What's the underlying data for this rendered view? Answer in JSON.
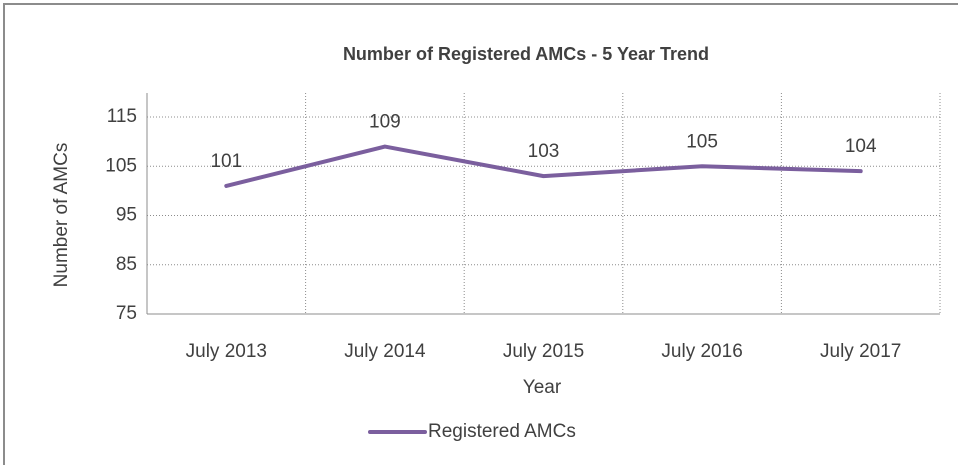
{
  "chart_data": {
    "type": "line",
    "title": "Number of Registered AMCs - 5 Year Trend",
    "x_label": "Year",
    "y_label": "Number of AMCs",
    "categories": [
      "July 2013",
      "July 2014",
      "July 2015",
      "July 2016",
      "July 2017"
    ],
    "series": [
      {
        "name": "Registered AMCs",
        "color": "#7b5f9e",
        "values": [
          101,
          109,
          103,
          105,
          104
        ]
      }
    ],
    "ylim": [
      75,
      115
    ],
    "yticks": [
      75,
      85,
      95,
      105,
      115
    ],
    "grid": true,
    "legend": "bottom"
  }
}
